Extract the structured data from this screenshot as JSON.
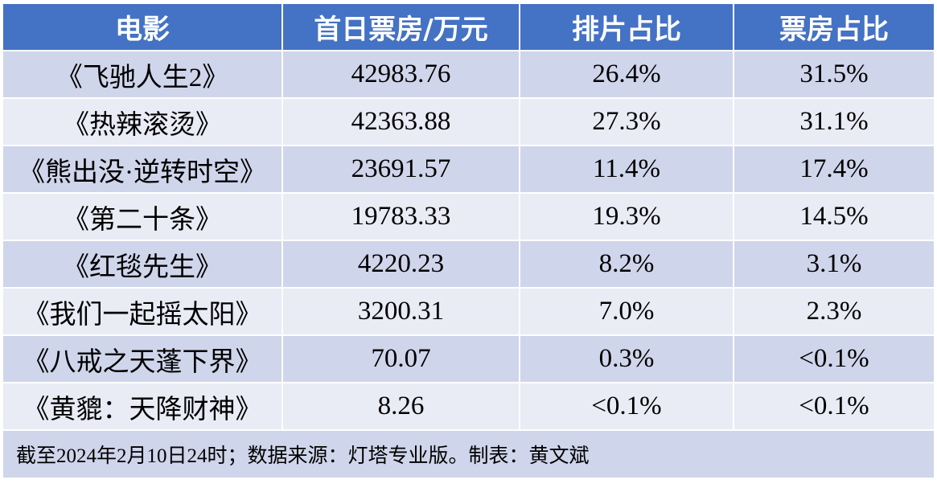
{
  "headers": [
    "电影",
    "首日票房/万元",
    "排片占比",
    "票房占比"
  ],
  "rows": [
    [
      "《飞驰人生2》",
      "42983.76",
      "26.4%",
      "31.5%"
    ],
    [
      "《热辣滚烫》",
      "42363.88",
      "27.3%",
      "31.1%"
    ],
    [
      "《熊出没·逆转时空》",
      "23691.57",
      "11.4%",
      "17.4%"
    ],
    [
      "《第二十条》",
      "19783.33",
      "19.3%",
      "14.5%"
    ],
    [
      "《红毯先生》",
      "4220.23",
      "8.2%",
      "3.1%"
    ],
    [
      "《我们一起摇太阳》",
      "3200.31",
      "7.0%",
      "2.3%"
    ],
    [
      "《八戒之天蓬下界》",
      "70.07",
      "0.3%",
      "<0.1%"
    ],
    [
      "《黄貔：天降财神》",
      "8.26",
      "<0.1%",
      "<0.1%"
    ]
  ],
  "footer": "截至2024年2月10日24时；数据来源：灯塔专业版。制表：黄文斌",
  "colors": {
    "header_bg": "#4472c4",
    "row_dark": "#cfd5ea",
    "row_light": "#e9ebf5",
    "header_text": "#ffffff"
  }
}
